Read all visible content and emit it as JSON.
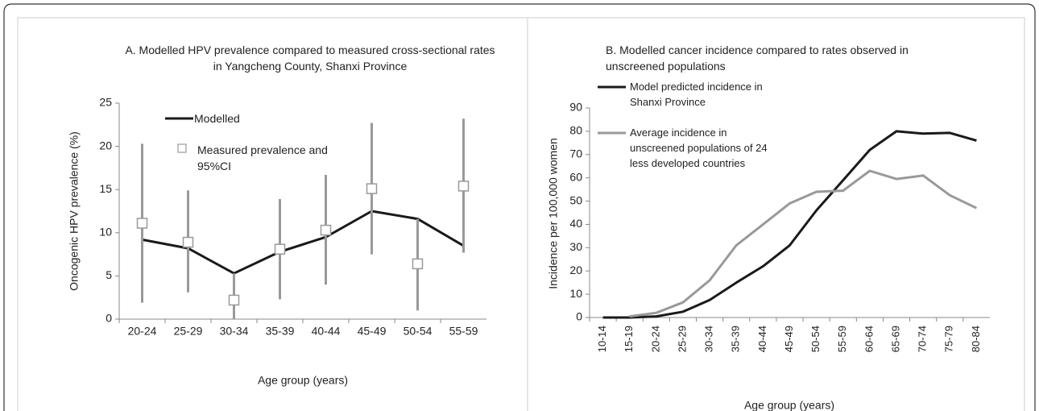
{
  "chart_data": [
    {
      "type": "line",
      "title": "A. Modelled HPV prevalence compared to measured cross-sectional rates in Yangcheng County, Shanxi Province",
      "x_label": "Age group (years)",
      "y_label": "Oncogenic HPV prevalence (%)",
      "categories": [
        "20-24",
        "25-29",
        "30-34",
        "35-39",
        "40-44",
        "45-49",
        "50-54",
        "55-59"
      ],
      "ylim": [
        0,
        25
      ],
      "yticks": [
        0,
        5,
        10,
        15,
        20,
        25
      ],
      "series": [
        {
          "name": "Modelled",
          "color": "#1a1a1a",
          "values": [
            9.2,
            8.2,
            5.3,
            7.8,
            9.5,
            12.5,
            11.6,
            8.5
          ]
        },
        {
          "name": "Measured prevalence and 95%CI",
          "color": "#999999",
          "marker": "square",
          "values": [
            11.1,
            8.9,
            2.2,
            8.1,
            10.3,
            15.1,
            6.4,
            15.4
          ],
          "ci_low": [
            1.9,
            3.1,
            0,
            2.3,
            4.0,
            7.5,
            1.0,
            7.7
          ],
          "ci_high": [
            20.3,
            14.9,
            5.3,
            13.9,
            16.7,
            22.7,
            11.6,
            23.2
          ]
        }
      ]
    },
    {
      "type": "line",
      "title": "B. Modelled cancer incidence compared to rates observed in unscreened populations",
      "x_label": "Age group (years)",
      "y_label": "Incidence per 100,000 women",
      "categories": [
        "10-14",
        "15-19",
        "20-24",
        "25-29",
        "30-34",
        "35-39",
        "40-44",
        "45-49",
        "50-54",
        "55-59",
        "60-64",
        "65-69",
        "70-74",
        "75-79",
        "80-84"
      ],
      "ylim": [
        0,
        90
      ],
      "yticks": [
        0,
        10,
        20,
        30,
        40,
        50,
        60,
        70,
        80,
        90
      ],
      "series": [
        {
          "name": "Model predicted incidence in Shanxi Province",
          "color": "#1a1a1a",
          "values": [
            0,
            0,
            0.5,
            2.5,
            7.5,
            15,
            22,
            31,
            46,
            59,
            72,
            80,
            79,
            79.3,
            76
          ]
        },
        {
          "name": "Average incidence in unscreened populations of 24 less developed countries",
          "color": "#999999",
          "values": [
            null,
            0.5,
            2,
            6.5,
            16,
            31,
            40,
            49,
            54,
            54.5,
            63,
            59.5,
            61,
            52.5,
            47
          ]
        }
      ]
    }
  ]
}
